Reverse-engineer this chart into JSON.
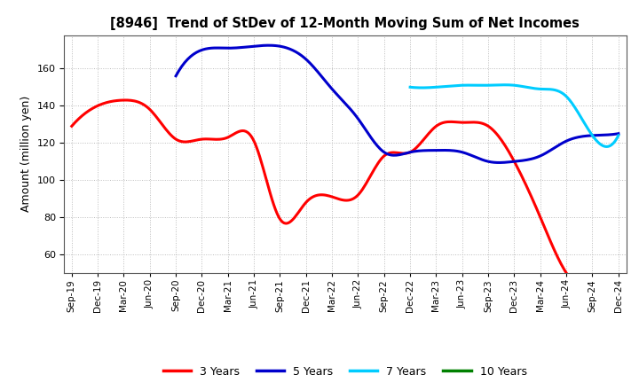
{
  "title": "[8946]  Trend of StDev of 12-Month Moving Sum of Net Incomes",
  "ylabel": "Amount (million yen)",
  "ylim": [
    50,
    178
  ],
  "yticks": [
    60,
    80,
    100,
    120,
    140,
    160
  ],
  "background_color": "#ffffff",
  "grid_color": "#bbbbbb",
  "x_labels": [
    "Sep-19",
    "Dec-19",
    "Mar-20",
    "Jun-20",
    "Sep-20",
    "Dec-20",
    "Mar-21",
    "Jun-21",
    "Sep-21",
    "Dec-21",
    "Mar-22",
    "Jun-22",
    "Sep-22",
    "Dec-22",
    "Mar-23",
    "Jun-23",
    "Sep-23",
    "Dec-23",
    "Mar-24",
    "Jun-24",
    "Sep-24",
    "Dec-24"
  ],
  "series": {
    "3 Years": {
      "color": "#ff0000",
      "x_indices": [
        0,
        1,
        2,
        3,
        4,
        5,
        6,
        7,
        8,
        9,
        10,
        11,
        12,
        13,
        14,
        15,
        16,
        17,
        18,
        19,
        20
      ],
      "values": [
        129,
        140,
        143,
        138,
        122,
        122,
        123,
        121,
        79,
        88,
        91,
        92,
        113,
        115,
        129,
        131,
        129,
        110,
        80,
        50,
        48
      ]
    },
    "5 Years": {
      "color": "#0000cc",
      "x_indices": [
        4,
        5,
        6,
        7,
        8,
        9,
        10,
        11,
        12,
        13,
        14,
        15,
        16,
        17,
        18,
        19,
        20,
        21
      ],
      "values": [
        156,
        170,
        171,
        172,
        172,
        165,
        149,
        133,
        115,
        115,
        116,
        115,
        110,
        110,
        113,
        121,
        124,
        125
      ]
    },
    "7 Years": {
      "color": "#00ccff",
      "x_indices": [
        13,
        14,
        15,
        16,
        17,
        18,
        19,
        20,
        21
      ],
      "values": [
        150,
        150,
        151,
        151,
        151,
        149,
        145,
        124,
        124
      ]
    },
    "10 Years": {
      "color": "#008000",
      "x_indices": [],
      "values": []
    }
  },
  "legend_labels": [
    "3 Years",
    "5 Years",
    "7 Years",
    "10 Years"
  ],
  "legend_colors": [
    "#ff0000",
    "#0000cc",
    "#00ccff",
    "#008000"
  ]
}
